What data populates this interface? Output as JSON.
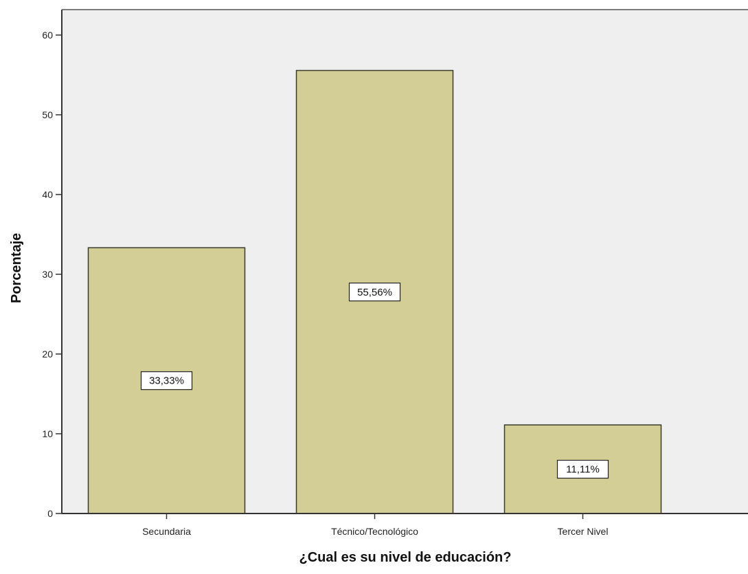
{
  "chart_data": {
    "type": "bar",
    "categories": [
      "Secundaria",
      "Técnico/Tecnológico",
      "Tercer Nivel"
    ],
    "values": [
      33.33,
      55.56,
      11.11
    ],
    "data_labels": [
      "33,33%",
      "55,56%",
      "11,11%"
    ],
    "title": "",
    "xlabel": "¿Cual es su nivel de educación?",
    "ylabel": "Porcentaje",
    "ylim": [
      0,
      62
    ],
    "yticks": [
      0,
      10,
      20,
      30,
      40,
      50,
      60
    ],
    "ytick_labels": [
      "0",
      "10",
      "20",
      "30",
      "40",
      "50",
      "60"
    ],
    "grid": false,
    "legend": "none",
    "colors": {
      "bar_fill": "#d3cd96",
      "bar_stroke": "#3a3a2a",
      "plot_background": "#efefef",
      "axis": "#333333",
      "label_box_fill": "#ffffff",
      "label_box_stroke": "#222222"
    }
  }
}
